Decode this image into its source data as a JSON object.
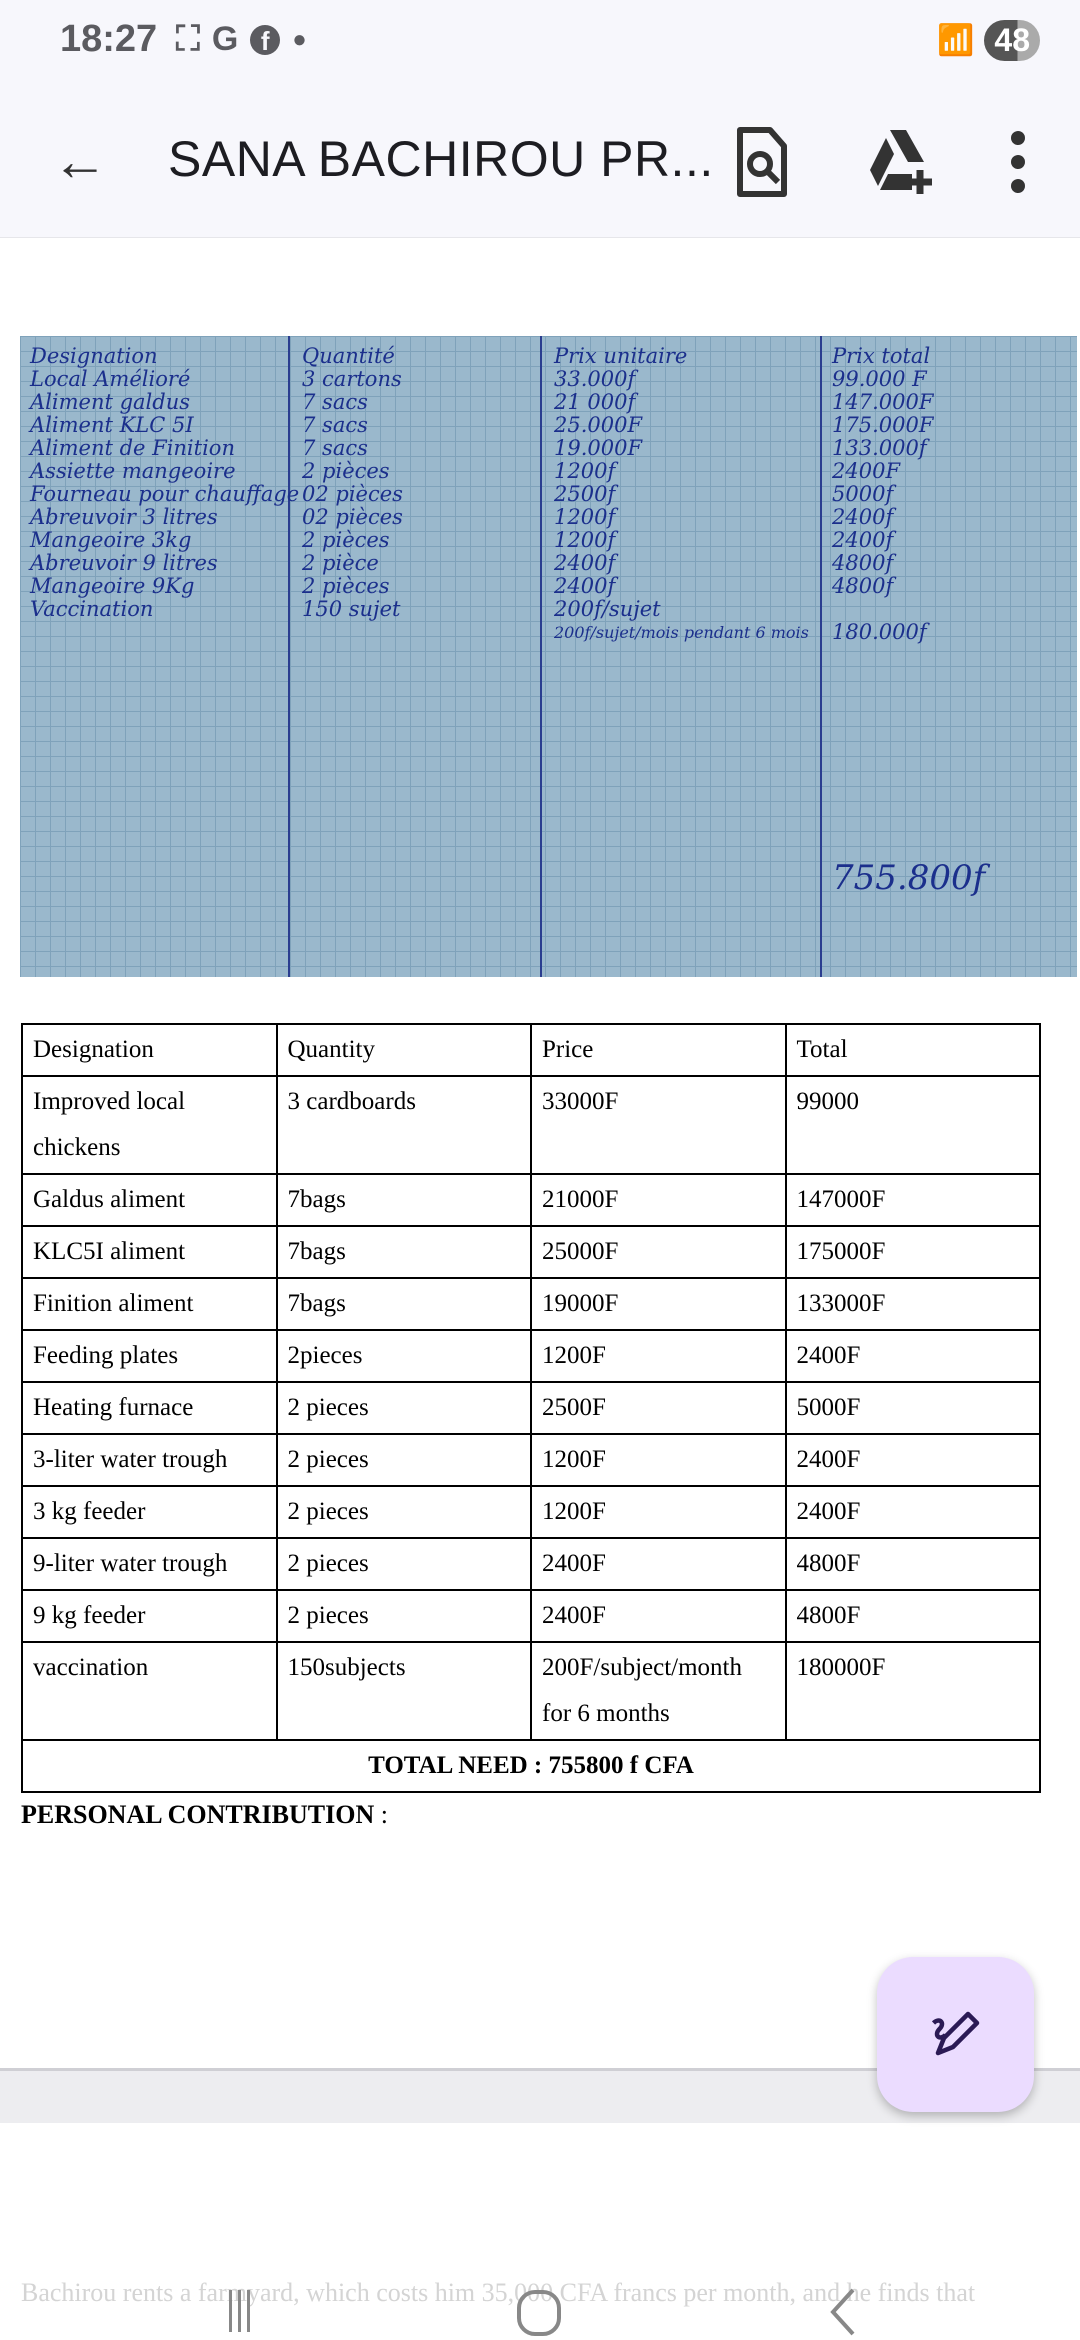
{
  "status_bar": {
    "time": "18:27",
    "icons": [
      "screenshot-icon",
      "google-icon",
      "facebook-icon",
      "dot-icon"
    ],
    "battery": "48"
  },
  "app_bar": {
    "title": "SANA BACHIROU PR...",
    "icons": [
      "back-arrow-icon",
      "document-search-icon",
      "drive-add-icon",
      "more-vert-icon"
    ]
  },
  "photo": {
    "header": [
      "Designation",
      "Quantité",
      "Prix unitaire",
      "Prix total"
    ],
    "rows": [
      [
        "Local Amélioré",
        "3 cartons",
        "33.000f",
        "99.000 F"
      ],
      [
        "Aliment galdus",
        "7 sacs",
        "21 000f",
        "147.000F"
      ],
      [
        "Aliment KLC 5I",
        "7 sacs",
        "25.000F",
        "175.000F"
      ],
      [
        "Aliment de Finition",
        "7 sacs",
        "19.000F",
        "133.000f"
      ],
      [
        "Assiette mangeoire",
        "2 pièces",
        "1200f",
        "2400F"
      ],
      [
        "Fourneau pour chauffage",
        "02 pièces",
        "2500f",
        "5000f"
      ],
      [
        "Abreuvoir 3 litres",
        "02 pièces",
        "1200f",
        "2400f"
      ],
      [
        "Mangeoire 3kg",
        "2 pièces",
        "1200f",
        "2400f"
      ],
      [
        "Abreuvoir 9 litres",
        "2 pièce",
        "2400f",
        "4800f"
      ],
      [
        "Mangeoire 9Kg",
        "2 pièces",
        "2400f",
        "4800f"
      ],
      [
        "Vaccination",
        "150 sujet",
        "200f/sujet",
        ""
      ],
      [
        "",
        "",
        "200f/sujet/mois pendant 6 mois",
        "180.000f"
      ]
    ],
    "grand_total": "755.800f"
  },
  "table": {
    "header": [
      "Designation",
      "Quantity",
      "Price",
      "Total"
    ],
    "rows": [
      [
        "Improved local chickens",
        "3 cardboards",
        "33000F",
        "99000"
      ],
      [
        "Galdus aliment",
        "7bags",
        "21000F",
        "147000F"
      ],
      [
        "KLC5I aliment",
        "7bags",
        "25000F",
        "175000F"
      ],
      [
        "Finition aliment",
        "7bags",
        "19000F",
        "133000F"
      ],
      [
        "Feeding plates",
        "2pieces",
        "1200F",
        "2400F"
      ],
      [
        "Heating furnace",
        "2 pieces",
        "2500F",
        "5000F"
      ],
      [
        "3-liter water trough",
        "2 pieces",
        "1200F",
        "2400F"
      ],
      [
        "3 kg feeder",
        "2 pieces",
        "1200F",
        "2400F"
      ],
      [
        "9-liter water trough",
        "2 pieces",
        "2400F",
        "4800F"
      ],
      [
        "9 kg feeder",
        "2 pieces",
        "2400F",
        "4800F"
      ],
      [
        "vaccination",
        "150subjects",
        "200F/subject/month for 6 months",
        "180000F"
      ]
    ],
    "total": "TOTAL NEED : 755800 f CFA"
  },
  "personal_contribution": {
    "label": "PERSONAL CONTRIBUTION",
    "colon": " :"
  },
  "next_page_text": "Bachirou rents a farmyard, which costs him 35,000 CFA francs per month, and he finds that",
  "fab": {
    "icon": "edit-pen-icon",
    "color": "#ebdcff"
  },
  "nav_bar": {
    "icons": [
      "recent-apps-icon",
      "home-icon",
      "back-icon"
    ]
  }
}
